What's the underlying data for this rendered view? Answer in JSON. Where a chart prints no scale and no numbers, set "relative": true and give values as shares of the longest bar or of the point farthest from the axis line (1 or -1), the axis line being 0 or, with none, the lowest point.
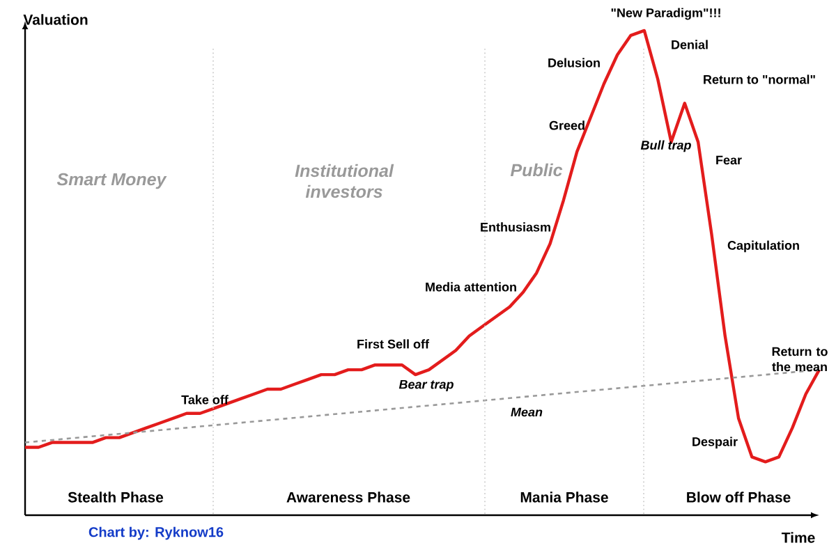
{
  "chart_data": {
    "type": "line",
    "relative": true,
    "grid": "x",
    "marker": "none",
    "xlabel": "Time",
    "ylabel": "Valuation",
    "categories": [
      null,
      null,
      null,
      null,
      null,
      null,
      null,
      null,
      null,
      null,
      null,
      null,
      null,
      null,
      null,
      null,
      null,
      null,
      null,
      null,
      null,
      null,
      null,
      null,
      null,
      null,
      null,
      null,
      null,
      null,
      null,
      null,
      null,
      null,
      null,
      null,
      null,
      null,
      null,
      null,
      null,
      null,
      null,
      null,
      null,
      null,
      null,
      null,
      null,
      null,
      null,
      null,
      null,
      null,
      null,
      null,
      null,
      null,
      null,
      null
    ],
    "series": [
      {
        "color": "#e31c1c",
        "line_style": "solid",
        "values": [
          0.14,
          0.14,
          0.15,
          0.15,
          0.15,
          0.15,
          0.16,
          0.16,
          0.17,
          0.18,
          0.19,
          0.2,
          0.21,
          0.21,
          0.22,
          0.23,
          0.24,
          0.25,
          0.26,
          0.26,
          0.27,
          0.28,
          0.29,
          0.29,
          0.3,
          0.3,
          0.31,
          0.31,
          0.31,
          0.29,
          0.3,
          0.32,
          0.34,
          0.37,
          0.39,
          0.41,
          0.43,
          0.46,
          0.5,
          0.56,
          0.65,
          0.75,
          0.82,
          0.89,
          0.95,
          0.99,
          1,
          0.9,
          0.77,
          0.85,
          0.77,
          0.58,
          0.37,
          0.2,
          0.12,
          0.11,
          0.12,
          0.18,
          0.25,
          0.3
        ]
      },
      {
        "name": "Mean",
        "color": "#999999",
        "line_style": "dashed",
        "values": [
          0.15,
          null,
          null,
          null,
          null,
          null,
          null,
          null,
          null,
          null,
          null,
          null,
          null,
          null,
          null,
          null,
          null,
          null,
          null,
          null,
          null,
          null,
          null,
          null,
          null,
          null,
          null,
          null,
          null,
          null,
          null,
          null,
          null,
          null,
          null,
          null,
          null,
          null,
          null,
          null,
          null,
          null,
          null,
          null,
          null,
          null,
          null,
          null,
          null,
          null,
          null,
          null,
          null,
          null,
          null,
          null,
          null,
          null,
          null,
          0.3
        ]
      }
    ],
    "annotations": [
      "Smart Money",
      "Institutional investors",
      "Public",
      "Take off",
      "First Sell off",
      "Bear trap",
      "Media attention",
      "Enthusiasm",
      "Greed",
      "Delusion",
      "\"New Paradigm\"!!!",
      "Denial",
      "Bull trap",
      "Return to \"normal\"",
      "Fear",
      "Capitulation",
      "Return to the mean",
      "Despair",
      "Stealth Phase",
      "Awareness Phase",
      "Mania Phase",
      "Blow off Phase",
      "Chart by: Ryknow16"
    ]
  }
}
